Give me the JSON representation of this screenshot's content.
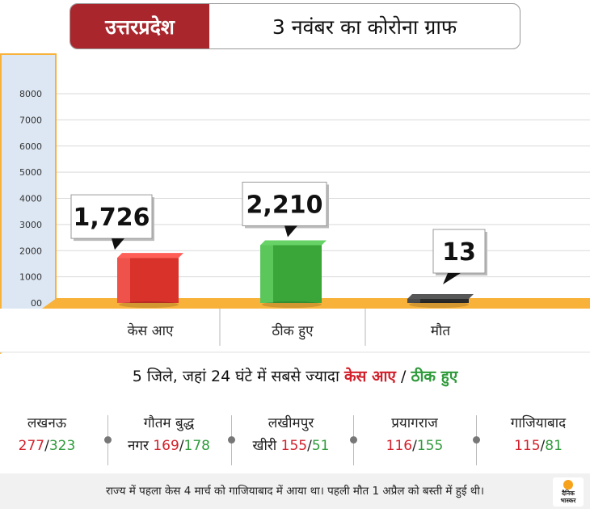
{
  "header": {
    "state": "उत्तरप्रदेश",
    "title": "3 नवंबर का कोरोना ग्राफ"
  },
  "chart_data": {
    "type": "bar",
    "categories": [
      "केस आए",
      "ठीक हुए",
      "मौत"
    ],
    "values": [
      1726,
      2210,
      13
    ],
    "value_labels": [
      "1,726",
      "2,210",
      "13"
    ],
    "colors": [
      "#d9322a",
      "#3aa63a",
      "#2a2a2a"
    ],
    "ylim": [
      0,
      8000
    ],
    "yticks": [
      0,
      1000,
      2000,
      3000,
      4000,
      5000,
      6000,
      7000,
      8000
    ],
    "ytick_labels": [
      "00",
      "1000",
      "2000",
      "3000",
      "4000",
      "5000",
      "6000",
      "7000",
      "8000"
    ],
    "grid": true,
    "title": "",
    "xlabel": "",
    "ylabel": ""
  },
  "districts_section": {
    "title_prefix": "5 जिले, जहां 24 घंटे में सबसे ज्यादा",
    "cases_label": "केस आए",
    "separator": "/",
    "recovered_label": "ठीक हुए"
  },
  "districts": [
    {
      "name1": "लखनऊ",
      "name2": "",
      "cases": "277",
      "recovered": "323"
    },
    {
      "name1": "गौतम बुद्ध",
      "name2": "नगर",
      "cases": "169",
      "recovered": "178"
    },
    {
      "name1": "लखीमपुर",
      "name2": "खीरी",
      "cases": "155",
      "recovered": "51"
    },
    {
      "name1": "प्रयागराज",
      "name2": "",
      "cases": "116",
      "recovered": "155"
    },
    {
      "name1": "गाजियाबाद",
      "name2": "",
      "cases": "115",
      "recovered": "81"
    }
  ],
  "footer": {
    "text": "राज्य में पहला केस 4 मार्च को गाजियाबाद में आया था। पहली मौत 1 अप्रैल को बस्ती में हुई थी।"
  },
  "logo": {
    "line1": "दैनिक",
    "line2": "भास्कर"
  },
  "colors": {
    "brand_red": "#a8262c",
    "cases": "#d21f2a",
    "recovered": "#2e9a3a",
    "floor": "#f8b23a",
    "wall": "#dde7f3"
  }
}
